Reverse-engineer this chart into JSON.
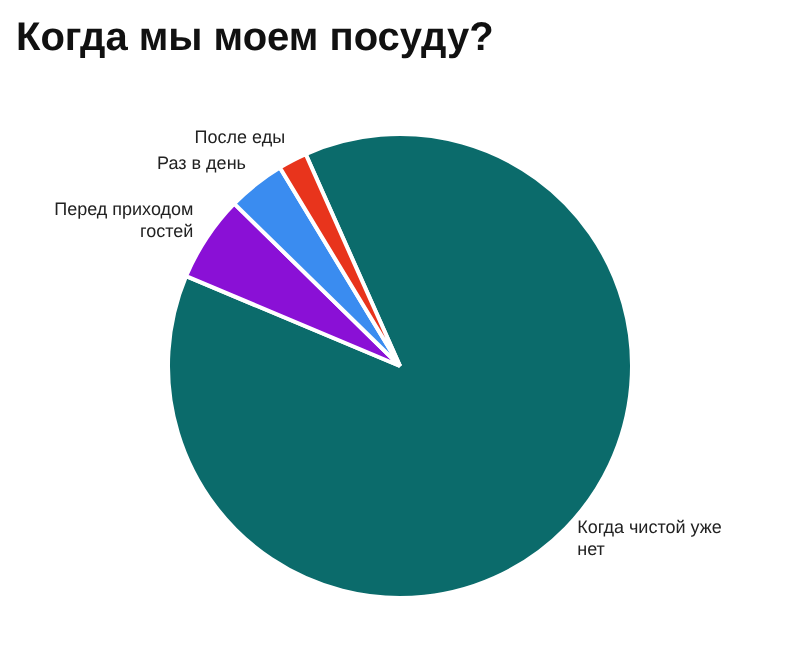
{
  "chart_data": {
    "type": "pie",
    "title": "Когда мы моем посуду?",
    "categories": [
      "Когда чистой уже нет",
      "Перед приходом гостей",
      "Раз в день",
      "После еды"
    ],
    "values": [
      88,
      6,
      4,
      2
    ],
    "colors": [
      "#0b6b6b",
      "#8a10d6",
      "#3a8cf0",
      "#e8341c"
    ]
  }
}
